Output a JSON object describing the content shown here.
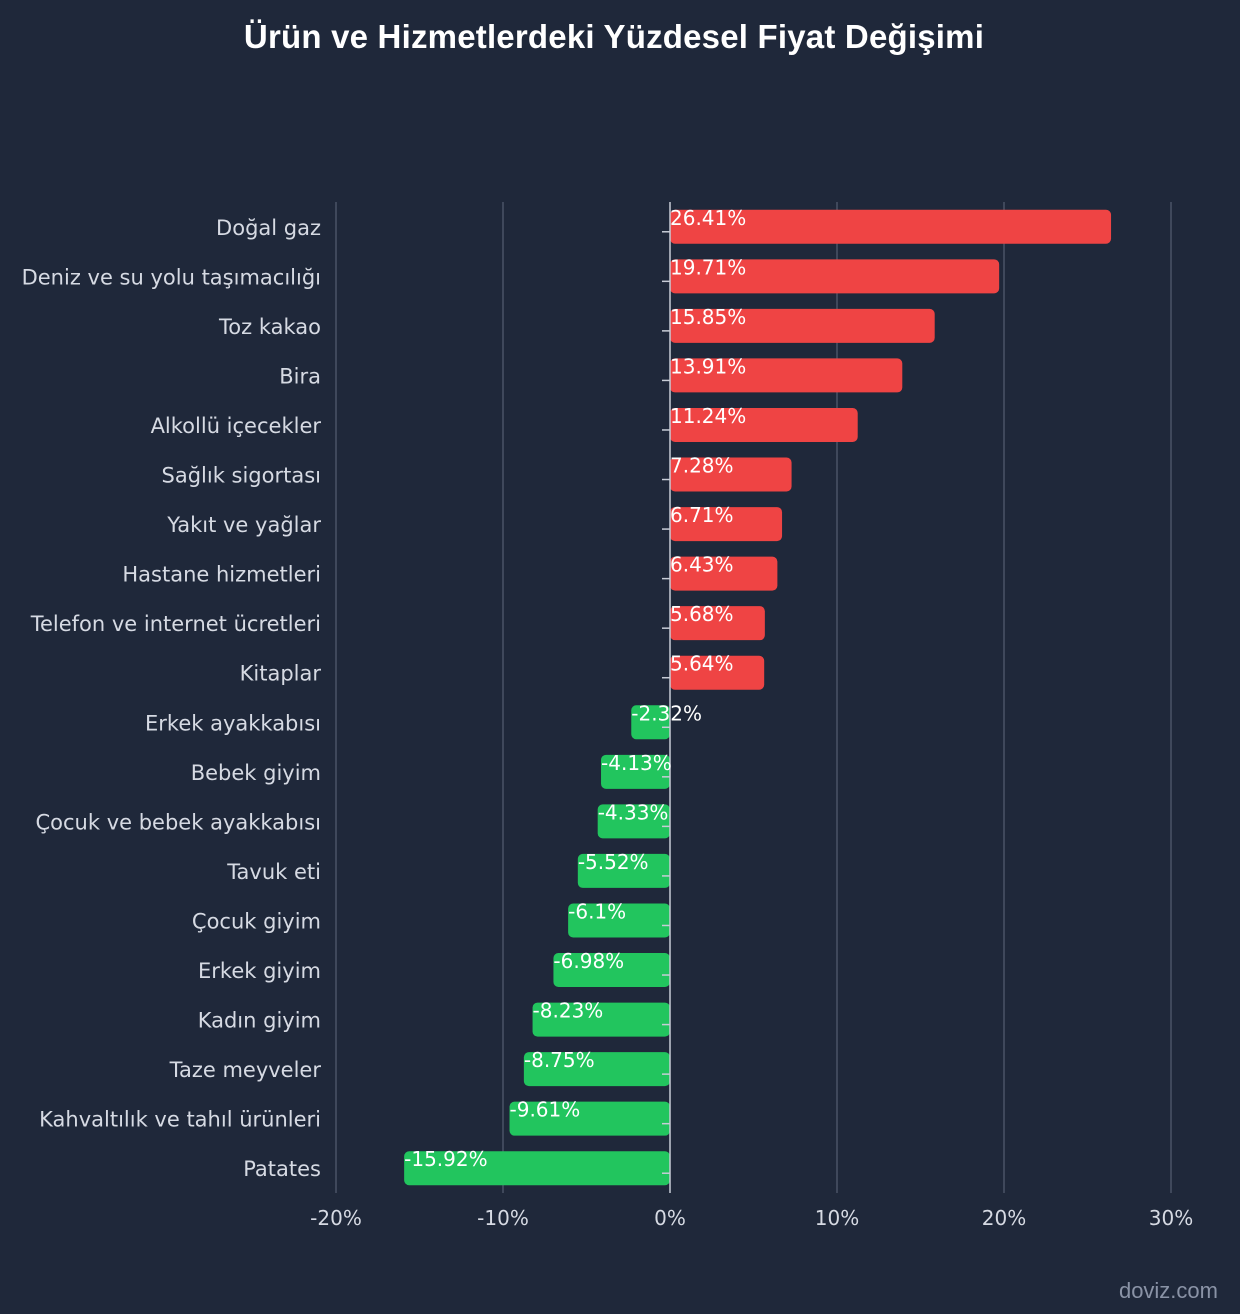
{
  "chart_data": {
    "type": "bar",
    "orientation": "horizontal",
    "title": "Ürün ve Hizmetlerdeki Yüzdesel Fiyat Değişimi",
    "xlabel": "",
    "ylabel": "",
    "xlim": [
      -20,
      30
    ],
    "x_ticks": [
      -20,
      -10,
      0,
      10,
      20,
      30
    ],
    "x_tick_labels": [
      "-20%",
      "-10%",
      "0%",
      "10%",
      "20%",
      "30%"
    ],
    "grid": true,
    "categories": [
      "Doğal gaz",
      "Deniz ve su yolu taşımacılığı",
      "Toz kakao",
      "Bira",
      "Alkollü içecekler",
      "Sağlık sigortası",
      "Yakıt ve yağlar",
      "Hastane hizmetleri",
      "Telefon ve internet ücretleri",
      "Kitaplar",
      "Erkek ayakkabısı",
      "Bebek giyim",
      "Çocuk ve bebek ayakkabısı",
      "Tavuk eti",
      "Çocuk giyim",
      "Erkek giyim",
      "Kadın giyim",
      "Taze meyveler",
      "Kahvaltılık ve tahıl ürünleri",
      "Patates"
    ],
    "values": [
      26.41,
      19.71,
      15.85,
      13.91,
      11.24,
      7.28,
      6.71,
      6.43,
      5.68,
      5.64,
      -2.32,
      -4.13,
      -4.33,
      -5.52,
      -6.1,
      -6.98,
      -8.23,
      -8.75,
      -9.61,
      -15.92
    ],
    "value_labels": [
      "26.41%",
      "19.71%",
      "15.85%",
      "13.91%",
      "11.24%",
      "7.28%",
      "6.71%",
      "6.43%",
      "5.68%",
      "5.64%",
      "-2.32%",
      "-4.13%",
      "-4.33%",
      "-5.52%",
      "-6.1%",
      "-6.98%",
      "-8.23%",
      "-8.75%",
      "-9.61%",
      "-15.92%"
    ],
    "colors": {
      "positive": "#ef4444",
      "negative": "#22c55e",
      "grid": "#4a5366",
      "axis": "#c7ccd6"
    }
  },
  "watermark": "doviz.com"
}
